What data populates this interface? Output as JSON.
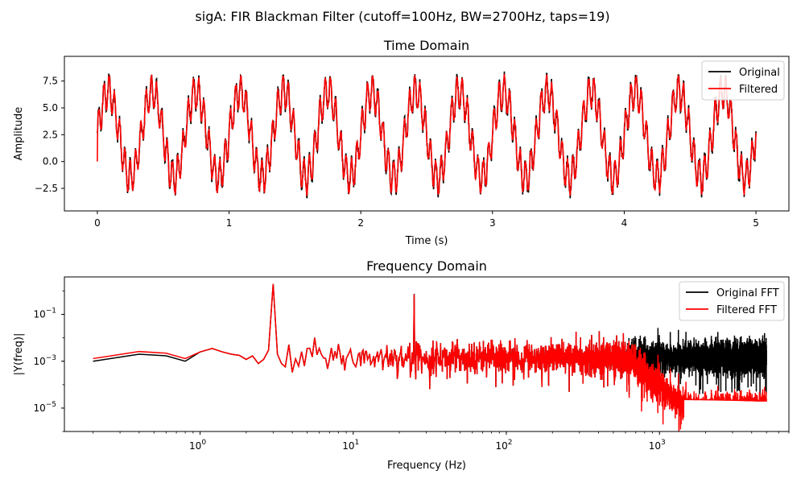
{
  "figure": {
    "suptitle": "sigA: FIR Blackman Filter (cutoff=100Hz, BW=2700Hz, taps=19)"
  },
  "colors": {
    "original": "#000000",
    "filtered": "#ff0000"
  },
  "chart_data": [
    {
      "type": "line",
      "title": "Time Domain",
      "xlabel": "Time (s)",
      "ylabel": "Amplitude",
      "xlim": [
        -0.25,
        5.25
      ],
      "ylim": [
        -4.6,
        9.8
      ],
      "xticks": [
        0,
        1,
        2,
        3,
        4,
        5
      ],
      "xtick_labels": [
        "0",
        "1",
        "2",
        "3",
        "4",
        "5"
      ],
      "yticks": [
        -2.5,
        0.0,
        2.5,
        5.0,
        7.5
      ],
      "ytick_labels": [
        "−2.5",
        "0.0",
        "2.5",
        "5.0",
        "7.5"
      ],
      "legend": {
        "position": "top-right",
        "entries": [
          "Original",
          "Filtered"
        ]
      },
      "signal": {
        "duration_s": 5,
        "components": [
          {
            "freq_hz": 3,
            "amplitude": 4.0
          },
          {
            "freq_hz": 25,
            "amplitude": 1.5
          }
        ],
        "offset": 2.5,
        "noise_amplitude": 0.5
      },
      "series": [
        {
          "name": "Original",
          "color": "#000000"
        },
        {
          "name": "Filtered",
          "color": "#ff0000",
          "start_value": 0
        }
      ]
    },
    {
      "type": "line",
      "title": "Frequency Domain",
      "xlabel": "Frequency (Hz)",
      "ylabel": "|Y(freq)|",
      "xscale": "log",
      "yscale": "log",
      "xlim": [
        0.13,
        7000
      ],
      "ylim": [
        1e-06,
        4
      ],
      "xticks": [
        1,
        10,
        100,
        1000
      ],
      "xtick_labels": [
        [
          "10",
          "0"
        ],
        [
          "10",
          "1"
        ],
        [
          "10",
          "2"
        ],
        [
          "10",
          "3"
        ]
      ],
      "yticks": [
        1e-05,
        0.001,
        0.1
      ],
      "ytick_labels": [
        [
          "10",
          "−5"
        ],
        [
          "10",
          "−3"
        ],
        [
          "10",
          "−1"
        ]
      ],
      "legend": {
        "position": "top-right",
        "entries": [
          "Original FFT",
          "Filtered FFT"
        ]
      },
      "spectrum": {
        "low_freq_points": [
          [
            0.2,
            0.001
          ],
          [
            0.4,
            0.002
          ],
          [
            0.6,
            0.0017
          ],
          [
            0.8,
            0.001
          ],
          [
            1.0,
            0.0025
          ],
          [
            1.2,
            0.0035
          ],
          [
            1.4,
            0.0025
          ],
          [
            1.6,
            0.002
          ],
          [
            1.8,
            0.0018
          ],
          [
            2.0,
            0.0012
          ],
          [
            2.2,
            0.0017
          ],
          [
            2.4,
            0.0008
          ],
          [
            2.6,
            0.0012
          ],
          [
            2.8,
            0.003
          ],
          [
            3.0,
            2.0
          ],
          [
            3.2,
            0.002
          ],
          [
            3.4,
            0.0008
          ]
        ],
        "peaks": [
          {
            "freq_hz": 3,
            "value": 2.0
          },
          {
            "freq_hz": 25,
            "value": 0.75
          }
        ],
        "noise_floor": 0.0015,
        "filtered_floor": 2e-05,
        "rolloff_start_hz": 600,
        "rolloff_end_hz": 1600,
        "max_freq_hz": 5000
      },
      "series": [
        {
          "name": "Original FFT",
          "color": "#000000"
        },
        {
          "name": "Filtered FFT",
          "color": "#ff0000"
        }
      ]
    }
  ]
}
